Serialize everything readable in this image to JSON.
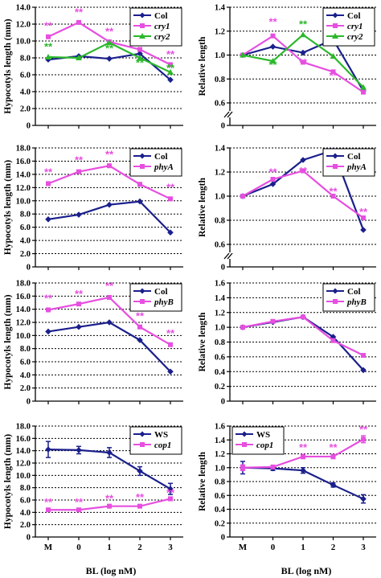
{
  "colors": {
    "navy": "#1a1f8c",
    "magenta": "#e64fe0",
    "green": "#2bb82b"
  },
  "x_axis": {
    "title": "BL (log nM)",
    "ticks": [
      "M",
      "0",
      "1",
      "2",
      "3"
    ]
  },
  "chart_data": [
    {
      "id": "p1",
      "type": "line",
      "ylabel": "Hypocotyls length (mm)",
      "ylim": [
        0,
        14
      ],
      "ytick_step": 2,
      "ytick_decimals": 1,
      "break": false,
      "categories": [
        "M",
        "0",
        "1",
        "2",
        "3"
      ],
      "legend": "top-right",
      "series": [
        {
          "name": "Col",
          "color": "#1a1f8c",
          "marker": "diamond",
          "values": [
            7.8,
            8.2,
            7.9,
            8.5,
            5.4
          ]
        },
        {
          "name": "cry1",
          "color": "#e64fe0",
          "marker": "square",
          "italic": true,
          "values": [
            10.5,
            12.2,
            9.9,
            9.0,
            7.2
          ]
        },
        {
          "name": "cry2",
          "color": "#2bb82b",
          "marker": "triangle",
          "italic": true,
          "values": [
            8.1,
            8.0,
            9.8,
            8.0,
            6.3
          ]
        }
      ],
      "annotations": [
        {
          "text": "**",
          "x": 0,
          "y": 11.4,
          "color": "#e64fe0"
        },
        {
          "text": "**",
          "x": 1,
          "y": 13.0,
          "color": "#e64fe0"
        },
        {
          "text": "**",
          "x": 2,
          "y": 10.7,
          "color": "#e64fe0"
        },
        {
          "text": "**",
          "x": 3,
          "y": 9.8,
          "color": "#e64fe0"
        },
        {
          "text": "**",
          "x": 4,
          "y": 8.0,
          "color": "#e64fe0"
        },
        {
          "text": "**",
          "x": 0,
          "y": 8.9,
          "color": "#2bb82b"
        },
        {
          "text": "**",
          "x": 2,
          "y": 8.7,
          "color": "#2bb82b"
        },
        {
          "text": "**",
          "x": 3,
          "y": 7.0,
          "color": "#2bb82b"
        },
        {
          "text": "**",
          "x": 4,
          "y": 6.4,
          "color": "#2bb82b"
        }
      ]
    },
    {
      "id": "p2",
      "type": "line",
      "ylabel": "Relative length",
      "ylim": [
        0,
        1.4
      ],
      "ytick_step": 0.2,
      "ytick_decimals": 1,
      "break": true,
      "break_from": 0.6,
      "categories": [
        "M",
        "0",
        "1",
        "2",
        "3"
      ],
      "legend": "top-right",
      "series": [
        {
          "name": "Col",
          "color": "#1a1f8c",
          "marker": "diamond",
          "values": [
            1.0,
            1.07,
            1.02,
            1.13,
            0.7
          ]
        },
        {
          "name": "cry1",
          "color": "#e64fe0",
          "marker": "square",
          "italic": true,
          "values": [
            1.0,
            1.16,
            0.94,
            0.86,
            0.69
          ]
        },
        {
          "name": "cry2",
          "color": "#2bb82b",
          "marker": "triangle",
          "italic": true,
          "values": [
            1.0,
            0.95,
            1.17,
            0.99,
            0.73
          ]
        }
      ],
      "annotations": [
        {
          "text": "**",
          "x": 1,
          "y": 1.25,
          "color": "#e64fe0"
        },
        {
          "text": "**",
          "x": 2,
          "y": 0.91,
          "color": "#e64fe0"
        },
        {
          "text": "**",
          "x": 3,
          "y": 0.8,
          "color": "#e64fe0"
        },
        {
          "text": "**",
          "x": 1,
          "y": 0.89,
          "color": "#2bb82b"
        },
        {
          "text": "**",
          "x": 2,
          "y": 1.23,
          "color": "#2bb82b"
        },
        {
          "text": "**",
          "x": 3,
          "y": 1.05,
          "color": "#2bb82b"
        }
      ]
    },
    {
      "id": "p3",
      "type": "line",
      "ylabel": "Hypocotyls length (mm)",
      "ylim": [
        0,
        18
      ],
      "ytick_step": 2,
      "ytick_decimals": 1,
      "break": false,
      "categories": [
        "M",
        "0",
        "1",
        "2",
        "3"
      ],
      "legend": "top-right",
      "series": [
        {
          "name": "Col",
          "color": "#1a1f8c",
          "marker": "diamond",
          "values": [
            7.2,
            7.9,
            9.4,
            9.9,
            5.2
          ]
        },
        {
          "name": "phyA",
          "color": "#e64fe0",
          "marker": "square",
          "italic": true,
          "values": [
            12.6,
            14.4,
            15.3,
            12.5,
            10.3
          ]
        }
      ],
      "annotations": [
        {
          "text": "**",
          "x": 0,
          "y": 13.8,
          "color": "#e64fe0"
        },
        {
          "text": "**",
          "x": 1,
          "y": 15.6,
          "color": "#e64fe0"
        },
        {
          "text": "**",
          "x": 2,
          "y": 16.5,
          "color": "#e64fe0"
        },
        {
          "text": "**",
          "x": 3,
          "y": 13.7,
          "color": "#e64fe0"
        },
        {
          "text": "**",
          "x": 4,
          "y": 11.5,
          "color": "#e64fe0"
        }
      ]
    },
    {
      "id": "p4",
      "type": "line",
      "ylabel": "Relative length",
      "ylim": [
        0,
        1.4
      ],
      "ytick_step": 0.2,
      "ytick_decimals": 1,
      "break": true,
      "break_from": 0.6,
      "categories": [
        "M",
        "0",
        "1",
        "2",
        "3"
      ],
      "legend": "top-right",
      "series": [
        {
          "name": "Col",
          "color": "#1a1f8c",
          "marker": "diamond",
          "values": [
            1.0,
            1.1,
            1.3,
            1.38,
            0.72
          ]
        },
        {
          "name": "phyA",
          "color": "#e64fe0",
          "marker": "square",
          "italic": true,
          "values": [
            1.0,
            1.14,
            1.21,
            1.0,
            0.82
          ]
        }
      ],
      "annotations": [
        {
          "text": "**",
          "x": 1,
          "y": 1.17,
          "color": "#e64fe0"
        },
        {
          "text": "**",
          "x": 2,
          "y": 1.18,
          "color": "#e64fe0"
        },
        {
          "text": "**",
          "x": 3,
          "y": 1.01,
          "color": "#e64fe0"
        },
        {
          "text": "**",
          "x": 4,
          "y": 0.84,
          "color": "#e64fe0"
        }
      ]
    },
    {
      "id": "p5",
      "type": "line",
      "ylabel": "Hypocotyls length (mm)",
      "ylim": [
        0,
        18
      ],
      "ytick_step": 2,
      "ytick_decimals": 1,
      "break": false,
      "categories": [
        "M",
        "0",
        "1",
        "2",
        "3"
      ],
      "legend": "top-right",
      "series": [
        {
          "name": "Col",
          "color": "#1a1f8c",
          "marker": "diamond",
          "values": [
            10.6,
            11.3,
            12.0,
            9.3,
            4.5
          ]
        },
        {
          "name": "phyB",
          "color": "#e64fe0",
          "marker": "square",
          "italic": true,
          "values": [
            13.9,
            14.8,
            15.8,
            11.3,
            8.6
          ]
        }
      ],
      "annotations": [
        {
          "text": "**",
          "x": 0,
          "y": 15.1,
          "color": "#e64fe0"
        },
        {
          "text": "**",
          "x": 1,
          "y": 15.8,
          "color": "#e64fe0"
        },
        {
          "text": "**",
          "x": 2,
          "y": 17.0,
          "color": "#e64fe0"
        },
        {
          "text": "**",
          "x": 3,
          "y": 12.4,
          "color": "#e64fe0"
        },
        {
          "text": "**",
          "x": 4,
          "y": 9.8,
          "color": "#e64fe0"
        }
      ]
    },
    {
      "id": "p6",
      "type": "line",
      "ylabel": "Relative length",
      "ylim": [
        0,
        1.6
      ],
      "ytick_step": 0.2,
      "ytick_decimals": 1,
      "break": false,
      "categories": [
        "M",
        "0",
        "1",
        "2",
        "3"
      ],
      "legend": "top-right",
      "series": [
        {
          "name": "Col",
          "color": "#1a1f8c",
          "marker": "diamond",
          "values": [
            1.0,
            1.07,
            1.14,
            0.87,
            0.42
          ]
        },
        {
          "name": "phyB",
          "color": "#e64fe0",
          "marker": "square",
          "italic": true,
          "values": [
            1.0,
            1.08,
            1.14,
            0.82,
            0.62
          ]
        }
      ],
      "annotations": []
    },
    {
      "id": "p7",
      "type": "line",
      "ylabel": "Hypocotyls length (mm)",
      "ylim": [
        0,
        18
      ],
      "ytick_step": 2,
      "ytick_decimals": 1,
      "break": false,
      "categories": [
        "M",
        "0",
        "1",
        "2",
        "3"
      ],
      "legend": "top-right",
      "series": [
        {
          "name": "WS",
          "color": "#1a1f8c",
          "marker": "diamond",
          "values": [
            14.2,
            14.1,
            13.7,
            10.7,
            7.8
          ],
          "errors": [
            1.3,
            0.6,
            0.8,
            0.7,
            0.9
          ]
        },
        {
          "name": "cop1",
          "color": "#e64fe0",
          "marker": "square",
          "italic": true,
          "values": [
            4.4,
            4.4,
            5.0,
            5.0,
            6.2
          ],
          "errors": [
            0,
            0,
            0,
            0,
            0.3
          ]
        }
      ],
      "annotations": [
        {
          "text": "**",
          "x": 0,
          "y": 5.1,
          "color": "#e64fe0"
        },
        {
          "text": "**",
          "x": 1,
          "y": 5.1,
          "color": "#e64fe0"
        },
        {
          "text": "**",
          "x": 2,
          "y": 5.7,
          "color": "#e64fe0"
        },
        {
          "text": "**",
          "x": 3,
          "y": 5.9,
          "color": "#e64fe0"
        },
        {
          "text": "**",
          "x": 4,
          "y": 6.6,
          "color": "#e64fe0"
        }
      ]
    },
    {
      "id": "p8",
      "type": "line",
      "ylabel": "Relative length",
      "ylim": [
        0,
        1.6
      ],
      "ytick_step": 0.2,
      "ytick_decimals": 1,
      "break": false,
      "categories": [
        "M",
        "0",
        "1",
        "2",
        "3"
      ],
      "legend": "top-left",
      "series": [
        {
          "name": "WS",
          "color": "#1a1f8c",
          "marker": "diamond",
          "values": [
            1.0,
            0.99,
            0.96,
            0.75,
            0.55
          ],
          "errors": [
            0.09,
            0.03,
            0.04,
            0.03,
            0.06
          ]
        },
        {
          "name": "cop1",
          "color": "#e64fe0",
          "marker": "square",
          "italic": true,
          "values": [
            1.0,
            1.01,
            1.16,
            1.16,
            1.41
          ],
          "errors": [
            0.04,
            0.02,
            0.03,
            0.03,
            0.05
          ]
        }
      ],
      "annotations": [
        {
          "text": "**",
          "x": 2,
          "y": 1.24,
          "color": "#e64fe0"
        },
        {
          "text": "**",
          "x": 3,
          "y": 1.24,
          "color": "#e64fe0"
        },
        {
          "text": "**",
          "x": 4,
          "y": 1.5,
          "color": "#e64fe0"
        }
      ]
    }
  ]
}
